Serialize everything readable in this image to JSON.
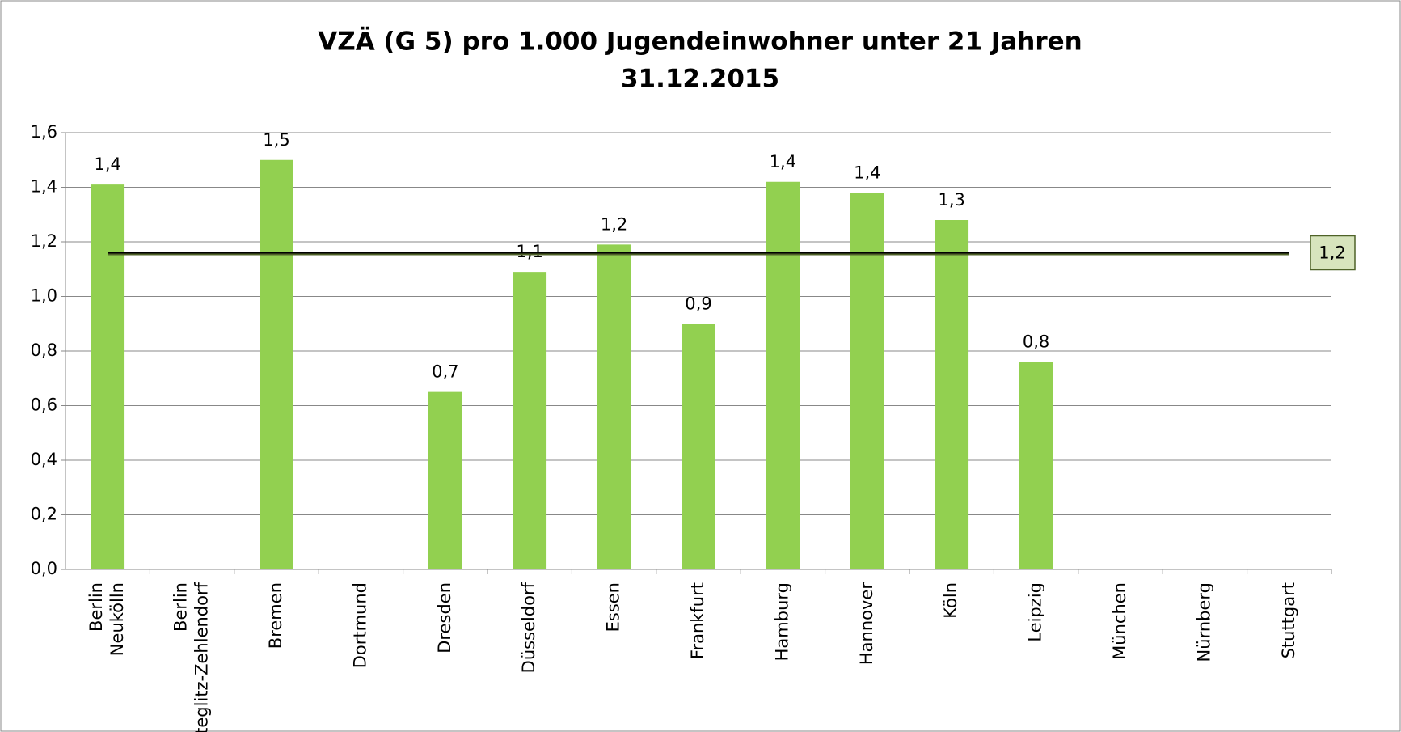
{
  "chart_data": {
    "type": "bar",
    "title": "VZÄ (G 5) pro 1.000 Jugendeinwohner unter 21 Jahren",
    "subtitle": "31.12.2015",
    "categories": [
      "Berlin Neukölln",
      "Berlin Steglitz-Zehlendorf",
      "Bremen",
      "Dortmund",
      "Dresden",
      "Düsseldorf",
      "Essen",
      "Frankfurt",
      "Hamburg",
      "Hannover",
      "Köln",
      "Leipzig",
      "München",
      "Nürnberg",
      "Stuttgart"
    ],
    "values": [
      1.41,
      null,
      1.5,
      null,
      0.65,
      1.09,
      1.19,
      0.9,
      1.42,
      1.38,
      1.28,
      0.76,
      null,
      null,
      null
    ],
    "value_labels": [
      "1,4",
      null,
      "1,5",
      null,
      "0,7",
      "1,1",
      "1,2",
      "0,9",
      "1,4",
      "1,4",
      "1,3",
      "0,8",
      null,
      null,
      null
    ],
    "color": "#92d050",
    "reference_line": {
      "value": 1.16,
      "label": "1,2"
    },
    "ylim": [
      0,
      1.6
    ],
    "yticks": [
      {
        "value": 0,
        "label": "0,0"
      },
      {
        "value": 0.2,
        "label": "0,2"
      },
      {
        "value": 0.4,
        "label": "0,4"
      },
      {
        "value": 0.6,
        "label": "0,6"
      },
      {
        "value": 0.8,
        "label": "0,8"
      },
      {
        "value": 1.0,
        "label": "1,0"
      },
      {
        "value": 1.2,
        "label": "1,2"
      },
      {
        "value": 1.4,
        "label": "1,4"
      },
      {
        "value": 1.6,
        "label": "1,6"
      }
    ],
    "grid": true
  }
}
